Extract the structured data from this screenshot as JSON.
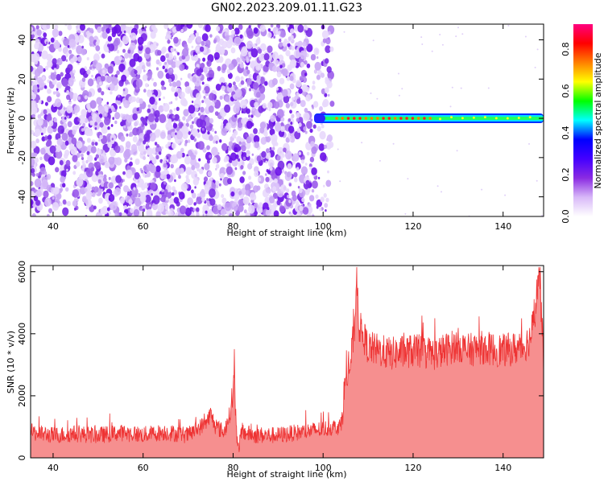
{
  "title": "GN02.2023.209.01.11.G23",
  "chart_data": [
    {
      "type": "heatmap",
      "title": "",
      "xlabel": "Height of straight line (km)",
      "ylabel": "Frequency (Hz)",
      "xlim": [
        35,
        149
      ],
      "ylim": [
        -50,
        48
      ],
      "xticks": [
        40,
        60,
        80,
        100,
        120,
        140
      ],
      "yticks": [
        -40,
        -20,
        0,
        20,
        40
      ],
      "description_points": {
        "noise_region_x": [
          35,
          102
        ],
        "signal_x": [
          98,
          149
        ],
        "signal_frequency": 0,
        "signal_peak_segment_x": [
          103,
          125
        ]
      },
      "colorbar": {
        "label": "Normalized spectral amplitude",
        "range": [
          0.0,
          0.92
        ],
        "ticks": [
          "0.0",
          "0.2",
          "0.4",
          "0.6",
          "0.8"
        ],
        "tick_values": [
          0.0,
          0.2,
          0.4,
          0.6,
          0.8
        ],
        "colormap": [
          "#ffffff",
          "#d8b8f8",
          "#8a2be2",
          "#4400ff",
          "#0000ff",
          "#00ffff",
          "#00ff00",
          "#ffff00",
          "#ff8000",
          "#ff0000",
          "#ff0080"
        ]
      }
    },
    {
      "type": "line",
      "title": "",
      "xlabel": "Height of straight line (km)",
      "ylabel": "SNR (10 * v/v)",
      "xlim": [
        35,
        149
      ],
      "ylim": [
        0,
        6200
      ],
      "xticks": [
        40,
        60,
        80,
        100,
        120,
        140
      ],
      "yticks": [
        0,
        2000,
        4000,
        6000
      ],
      "color": "#ee3333",
      "series": [
        {
          "x": [
            35,
            40,
            45,
            50,
            55,
            60,
            65,
            70,
            74,
            75,
            76,
            78,
            79.5,
            80.3,
            81,
            82,
            85,
            90,
            95,
            100,
            104,
            105,
            106,
            107,
            107.5,
            108,
            110,
            115,
            120,
            125,
            130,
            132,
            135,
            140,
            144,
            145,
            146,
            147,
            148,
            149
          ],
          "y": [
            800,
            700,
            750,
            700,
            780,
            720,
            800,
            700,
            1100,
            1400,
            1000,
            800,
            1500,
            2500,
            200,
            800,
            700,
            700,
            800,
            900,
            1000,
            2500,
            2900,
            4200,
            5800,
            4200,
            3500,
            3300,
            3400,
            3300,
            3600,
            3400,
            3500,
            3400,
            3500,
            3600,
            3800,
            4500,
            6100,
            3200
          ]
        }
      ]
    }
  ]
}
